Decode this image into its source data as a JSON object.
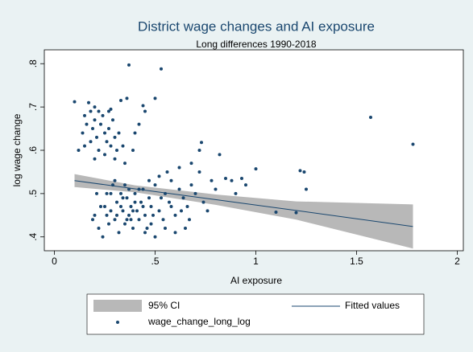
{
  "chart_data": {
    "type": "scatter",
    "title": "District wage changes and AI exposure",
    "subtitle": "Long differences 1990-2018",
    "xlabel": "AI exposure",
    "ylabel": "log wage change",
    "xlim": [
      -0.05,
      2.03
    ],
    "ylim": [
      0.368,
      0.832
    ],
    "xticks": [
      0,
      {
        "value": 0.5,
        "label": ".5"
      },
      1,
      1.5,
      2
    ],
    "yticks": [
      {
        "value": 0.4,
        "label": ".4"
      },
      {
        "value": 0.5,
        "label": ".5"
      },
      {
        "value": 0.6,
        "label": ".6"
      },
      {
        "value": 0.7,
        "label": ".7"
      },
      {
        "value": 0.8,
        "label": ".8"
      }
    ],
    "ci": {
      "name": "95% CI",
      "color": "#b8b8b8",
      "x": [
        0.1,
        0.4,
        0.8,
        1.2,
        1.78
      ],
      "lower": [
        0.515,
        0.503,
        0.474,
        0.44,
        0.373
      ],
      "upper": [
        0.545,
        0.519,
        0.498,
        0.482,
        0.475
      ]
    },
    "fit": {
      "name": "Fitted values",
      "color": "#1a476f",
      "x": [
        0.1,
        0.4,
        0.8,
        1.2,
        1.78
      ],
      "values": [
        0.53,
        0.511,
        0.486,
        0.461,
        0.424
      ]
    },
    "series": [
      {
        "name": "wage_change_long_log",
        "color": "#1a476f",
        "x": [
          0.37,
          0.53,
          0.5,
          0.1,
          0.44,
          0.45,
          1.57,
          1.78,
          0.73,
          0.82,
          1.0,
          1.22,
          1.24,
          1.25,
          1.1,
          1.2,
          0.93,
          0.85,
          0.88,
          0.28,
          0.36,
          0.33,
          0.2,
          0.17,
          0.15,
          0.14,
          0.16,
          0.18,
          0.19,
          0.2,
          0.21,
          0.22,
          0.23,
          0.24,
          0.25,
          0.26,
          0.27,
          0.28,
          0.29,
          0.3,
          0.31,
          0.32,
          0.34,
          0.25,
          0.2,
          0.15,
          0.12,
          0.27,
          0.3,
          0.22,
          0.18,
          0.35,
          0.4,
          0.42,
          0.39,
          0.2,
          0.22,
          0.24,
          0.25,
          0.26,
          0.27,
          0.28,
          0.29,
          0.3,
          0.31,
          0.32,
          0.33,
          0.34,
          0.35,
          0.36,
          0.37,
          0.38,
          0.39,
          0.4,
          0.41,
          0.42,
          0.43,
          0.44,
          0.45,
          0.46,
          0.47,
          0.48,
          0.5,
          0.52,
          0.54,
          0.55,
          0.57,
          0.58,
          0.6,
          0.62,
          0.64,
          0.66,
          0.68,
          0.7,
          0.72,
          0.74,
          0.76,
          0.78,
          0.8,
          0.6,
          0.55,
          0.5,
          0.45,
          0.35,
          0.3,
          0.28,
          0.33,
          0.37,
          0.4,
          0.36,
          0.34,
          0.38,
          0.42,
          0.47,
          0.52,
          0.56,
          0.62,
          0.68,
          0.72,
          0.48,
          0.26,
          0.23,
          0.21,
          0.19,
          0.31,
          0.39,
          0.44,
          0.49,
          0.53,
          0.58,
          0.63,
          0.67,
          0.9,
          0.95,
          0.65
        ],
        "values": [
          0.797,
          0.788,
          0.72,
          0.712,
          0.703,
          0.69,
          0.676,
          0.614,
          0.618,
          0.59,
          0.557,
          0.553,
          0.55,
          0.51,
          0.457,
          0.456,
          0.535,
          0.535,
          0.53,
          0.695,
          0.72,
          0.715,
          0.7,
          0.71,
          0.68,
          0.64,
          0.66,
          0.62,
          0.65,
          0.67,
          0.63,
          0.6,
          0.66,
          0.68,
          0.64,
          0.62,
          0.65,
          0.61,
          0.67,
          0.63,
          0.6,
          0.64,
          0.61,
          0.59,
          0.58,
          0.61,
          0.6,
          0.69,
          0.58,
          0.69,
          0.69,
          0.57,
          0.64,
          0.66,
          0.6,
          0.45,
          0.42,
          0.4,
          0.47,
          0.5,
          0.43,
          0.46,
          0.52,
          0.44,
          0.48,
          0.41,
          0.5,
          0.46,
          0.43,
          0.49,
          0.45,
          0.47,
          0.42,
          0.5,
          0.46,
          0.44,
          0.48,
          0.51,
          0.45,
          0.42,
          0.49,
          0.47,
          0.52,
          0.46,
          0.44,
          0.5,
          0.48,
          0.53,
          0.45,
          0.51,
          0.49,
          0.47,
          0.52,
          0.5,
          0.55,
          0.48,
          0.46,
          0.53,
          0.51,
          0.41,
          0.42,
          0.4,
          0.41,
          0.52,
          0.53,
          0.5,
          0.47,
          0.51,
          0.48,
          0.44,
          0.49,
          0.44,
          0.51,
          0.53,
          0.54,
          0.55,
          0.56,
          0.57,
          0.6,
          0.43,
          0.45,
          0.47,
          0.5,
          0.44,
          0.45,
          0.46,
          0.47,
          0.45,
          0.49,
          0.47,
          0.46,
          0.44,
          0.5,
          0.52,
          0.42
        ]
      }
    ]
  }
}
